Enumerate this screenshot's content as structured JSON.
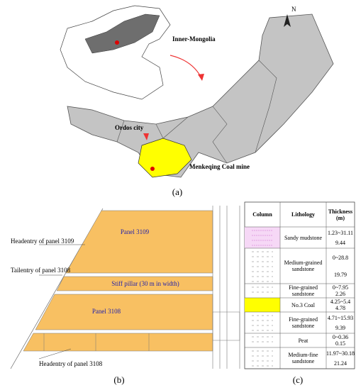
{
  "panel_a": {
    "north": "N",
    "inner_mongolia": "Inner-Mongolia",
    "ordos": "Ordos city",
    "mine": "Menkeqing  Coal mine",
    "caption": "(a)"
  },
  "panel_b": {
    "panel_3109": "Panel 3109",
    "pillar": "Stiff pillar (30 m in width)",
    "panel_3108": "Panel 3108",
    "headentry_3109": "Headentry of panel 3109",
    "tailentry_3108": "Tailentry of panel 3108",
    "headentry_3108": "Headentry of panel 3108",
    "caption": "(b)"
  },
  "panel_c": {
    "headers": [
      "Column",
      "Lithology",
      "Thickness (m)"
    ],
    "rows": [
      [
        "Sandy mudstone",
        "1.23~31.11",
        "9.44"
      ],
      [
        "Medium-grained sandstone",
        "0~28.8",
        "19.79"
      ],
      [
        "Fine-grained sandstone",
        "0~7.95",
        "2.26"
      ],
      [
        "No.3 Coal",
        "4.25~5.4",
        "4.78"
      ],
      [
        "Fine-grained sandstone",
        "4.71~15.93",
        "9.39"
      ],
      [
        "Peat",
        "0~0.36",
        "0.15"
      ],
      [
        "Medium-fine sandstone",
        "11.97~30.18",
        "21.24"
      ]
    ],
    "caption": "(c)"
  }
}
